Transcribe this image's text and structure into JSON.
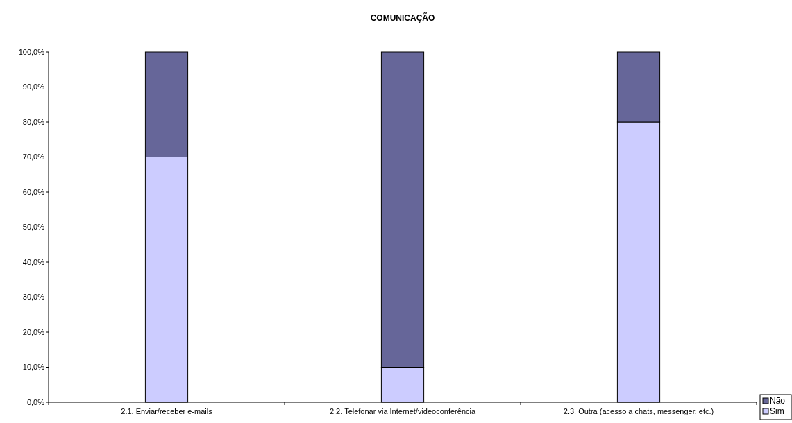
{
  "chart_data": {
    "type": "bar",
    "title": "COMUNICAÇÃO",
    "stacked": true,
    "legend": "bottom right",
    "categories": [
      "2.1. Enviar/receber e-mails",
      "2.2. Telefonar via Internet/videoconferência",
      "2.3. Outra (acesso a chats, messenger, etc.)"
    ],
    "series": [
      {
        "name": "Sim",
        "color": "#ccccff",
        "values": [
          70,
          10,
          80
        ]
      },
      {
        "name": "Não",
        "color": "#666699",
        "values": [
          30,
          90,
          20
        ]
      }
    ],
    "ylim": [
      0,
      100
    ],
    "yticks": [
      {
        "value": 0,
        "label": "0,0%"
      },
      {
        "value": 10,
        "label": "10,0%"
      },
      {
        "value": 20,
        "label": "20,0%"
      },
      {
        "value": 30,
        "label": "30,0%"
      },
      {
        "value": 40,
        "label": "40,0%"
      },
      {
        "value": 50,
        "label": "50,0%"
      },
      {
        "value": 60,
        "label": "60,0%"
      },
      {
        "value": 70,
        "label": "70,0%"
      },
      {
        "value": 80,
        "label": "80,0%"
      },
      {
        "value": 90,
        "label": "90,0%"
      },
      {
        "value": 100,
        "label": "100,0%"
      }
    ]
  }
}
